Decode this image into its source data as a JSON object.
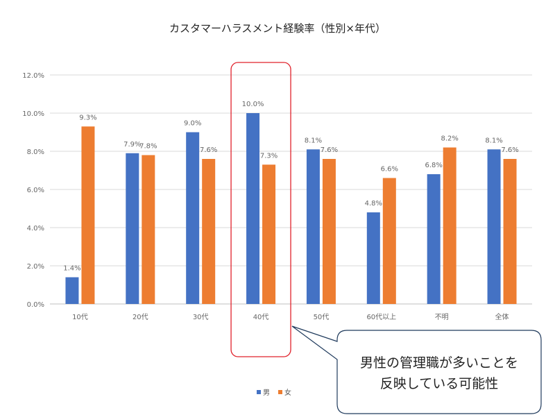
{
  "chart_data": {
    "type": "bar",
    "title": "カスタマーハラスメント経験率（性別×年代）",
    "categories": [
      "10代",
      "20代",
      "30代",
      "40代",
      "50代",
      "60代以上",
      "不明",
      "全体"
    ],
    "series": [
      {
        "name": "男",
        "color": "#4472C4",
        "values": [
          1.4,
          7.9,
          9.0,
          10.0,
          8.1,
          4.8,
          6.8,
          8.1
        ],
        "labels": [
          "1.4%",
          "7.9%",
          "9.0%",
          "10.0%",
          "8.1%",
          "4.8%",
          "6.8%",
          "8.1%"
        ]
      },
      {
        "name": "女",
        "color": "#ED7D31",
        "values": [
          9.3,
          7.8,
          7.6,
          7.3,
          7.6,
          6.6,
          8.2,
          7.6
        ],
        "labels": [
          "9.3%",
          "7.8%",
          "7.6%",
          "7.3%",
          "7.6%",
          "6.6%",
          "8.2%",
          "7.6%"
        ]
      }
    ],
    "ylim": [
      0,
      12
    ],
    "yticks": [
      "0.0%",
      "2.0%",
      "4.0%",
      "6.0%",
      "8.0%",
      "10.0%",
      "12.0%"
    ],
    "grid": true,
    "legend": "bottom",
    "highlight_category": "40代",
    "annotation": {
      "line1": "男性の管理職が多いことを",
      "line2": "反映している可能性"
    }
  }
}
